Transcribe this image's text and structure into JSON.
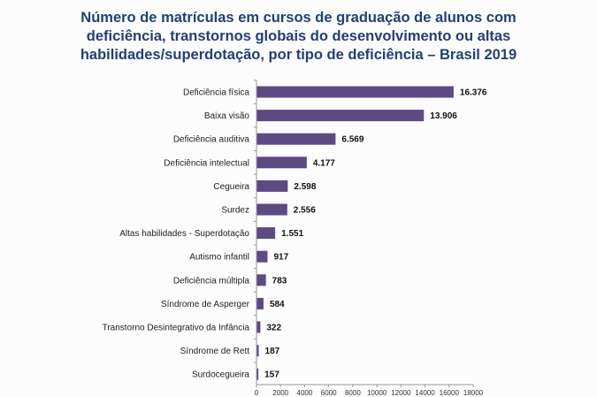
{
  "chart_data": {
    "type": "bar",
    "orientation": "horizontal",
    "title": "Número de matrículas em cursos de graduação de alunos com deficiência, transtornos globais do desenvolvimento ou altas habilidades/superdotação, por tipo de deficiência – Brasil 2019",
    "categories": [
      "Deficiência física",
      "Baixa visão",
      "Deficiência auditiva",
      "Deficiência intelectual",
      "Cegueira",
      "Surdez",
      "Altas habilidades - Superdotação",
      "Autismo infantil",
      "Deficiência múltipla",
      "Síndrome de Asperger",
      "Transtorno Desintegrativo da Infância",
      "Síndrome de Rett",
      "Surdocegueira"
    ],
    "values": [
      16376,
      13906,
      6569,
      4177,
      2598,
      2556,
      1551,
      917,
      783,
      584,
      322,
      187,
      157
    ],
    "value_labels": [
      "16.376",
      "13.906",
      "6.569",
      "4.177",
      "2.598",
      "2.556",
      "1.551",
      "917",
      "783",
      "584",
      "322",
      "187",
      "157"
    ],
    "xlim": [
      0,
      18000
    ],
    "xticks": [
      0,
      2000,
      4000,
      6000,
      8000,
      10000,
      12000,
      14000,
      16000,
      18000
    ],
    "grid": false,
    "colors": {
      "bar": "#5e4a82",
      "title": "#243f73"
    }
  }
}
